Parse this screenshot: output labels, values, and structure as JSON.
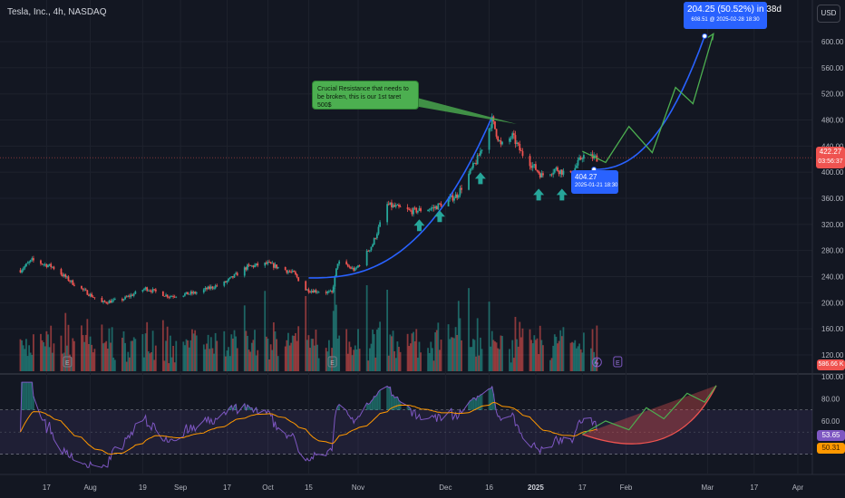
{
  "header": {
    "symbol_title": "Tesla, Inc., 4h, NASDAQ",
    "currency_button": "USD"
  },
  "colors": {
    "bg": "#131722",
    "up": "#26a69a",
    "down": "#ef5350",
    "grid": "#1e222d",
    "axis_text": "#b2b5be",
    "trend_blue": "#2962ff",
    "forecast_green": "#4caf50",
    "rsi_line": "#7e57c2",
    "rsi_ma": "#ff9800",
    "annotation_green": "#4caf50"
  },
  "chart_data": [
    {
      "type": "candlestick",
      "ylim": [
        95,
        650
      ],
      "y_ticks": [
        "600.00",
        "560.00",
        "520.00",
        "480.00",
        "440.00",
        "400.00",
        "360.00",
        "320.00",
        "280.00",
        "240.00",
        "200.00",
        "160.00",
        "120.00"
      ],
      "x_ticks": [
        "17",
        "Aug",
        "19",
        "Sep",
        "17",
        "Oct",
        "15",
        "Nov",
        "Dec",
        "16",
        "2025",
        "17",
        "Feb",
        "Mar",
        "17",
        "Apr"
      ],
      "price_labels": {
        "last_price": "422.27",
        "countdown": "03:56:37",
        "volume": "586.66 K"
      },
      "price_keypoints": [
        {
          "date": "2024-07-08",
          "price": 250
        },
        {
          "date": "2024-07-12",
          "price": 265
        },
        {
          "date": "2024-07-19",
          "price": 255
        },
        {
          "date": "2024-07-26",
          "price": 230
        },
        {
          "date": "2024-08-05",
          "price": 200
        },
        {
          "date": "2024-08-12",
          "price": 205
        },
        {
          "date": "2024-08-20",
          "price": 222
        },
        {
          "date": "2024-08-28",
          "price": 210
        },
        {
          "date": "2024-09-06",
          "price": 215
        },
        {
          "date": "2024-09-16",
          "price": 230
        },
        {
          "date": "2024-09-24",
          "price": 255
        },
        {
          "date": "2024-10-01",
          "price": 260
        },
        {
          "date": "2024-10-10",
          "price": 245
        },
        {
          "date": "2024-10-14",
          "price": 220
        },
        {
          "date": "2024-10-23",
          "price": 215
        },
        {
          "date": "2024-10-25",
          "price": 262
        },
        {
          "date": "2024-10-31",
          "price": 250
        },
        {
          "date": "2024-11-06",
          "price": 290
        },
        {
          "date": "2024-11-11",
          "price": 350
        },
        {
          "date": "2024-11-19",
          "price": 340
        },
        {
          "date": "2024-11-27",
          "price": 345
        },
        {
          "date": "2024-12-05",
          "price": 365
        },
        {
          "date": "2024-12-12",
          "price": 420
        },
        {
          "date": "2024-12-17",
          "price": 480
        },
        {
          "date": "2024-12-20",
          "price": 440
        },
        {
          "date": "2024-12-24",
          "price": 455
        },
        {
          "date": "2024-12-27",
          "price": 430
        },
        {
          "date": "2025-01-03",
          "price": 395
        },
        {
          "date": "2025-01-08",
          "price": 405
        },
        {
          "date": "2025-01-13",
          "price": 395
        },
        {
          "date": "2025-01-17",
          "price": 425
        },
        {
          "date": "2025-01-22",
          "price": 422
        }
      ],
      "annotations": {
        "resistance_note": "Crucial Resistance that needs to be broken, this is our 1st taret 500$",
        "entry_price": "404.27",
        "entry_date": "2025-01-21 18:30",
        "target_change": "204.25 (50.52%) in 38d",
        "target_detail": "608.51 @ 2025-02-28  18:30"
      },
      "earnings_markers": [
        "E",
        "E",
        "E",
        "E"
      ]
    },
    {
      "type": "line",
      "ylim": [
        15,
        100
      ],
      "y_ticks": [
        "100.00",
        "80.00",
        "60.00"
      ],
      "levels": [
        70,
        30
      ],
      "series_labels": {
        "rsi": "53.65",
        "rsi_ma": "50.31"
      }
    }
  ]
}
